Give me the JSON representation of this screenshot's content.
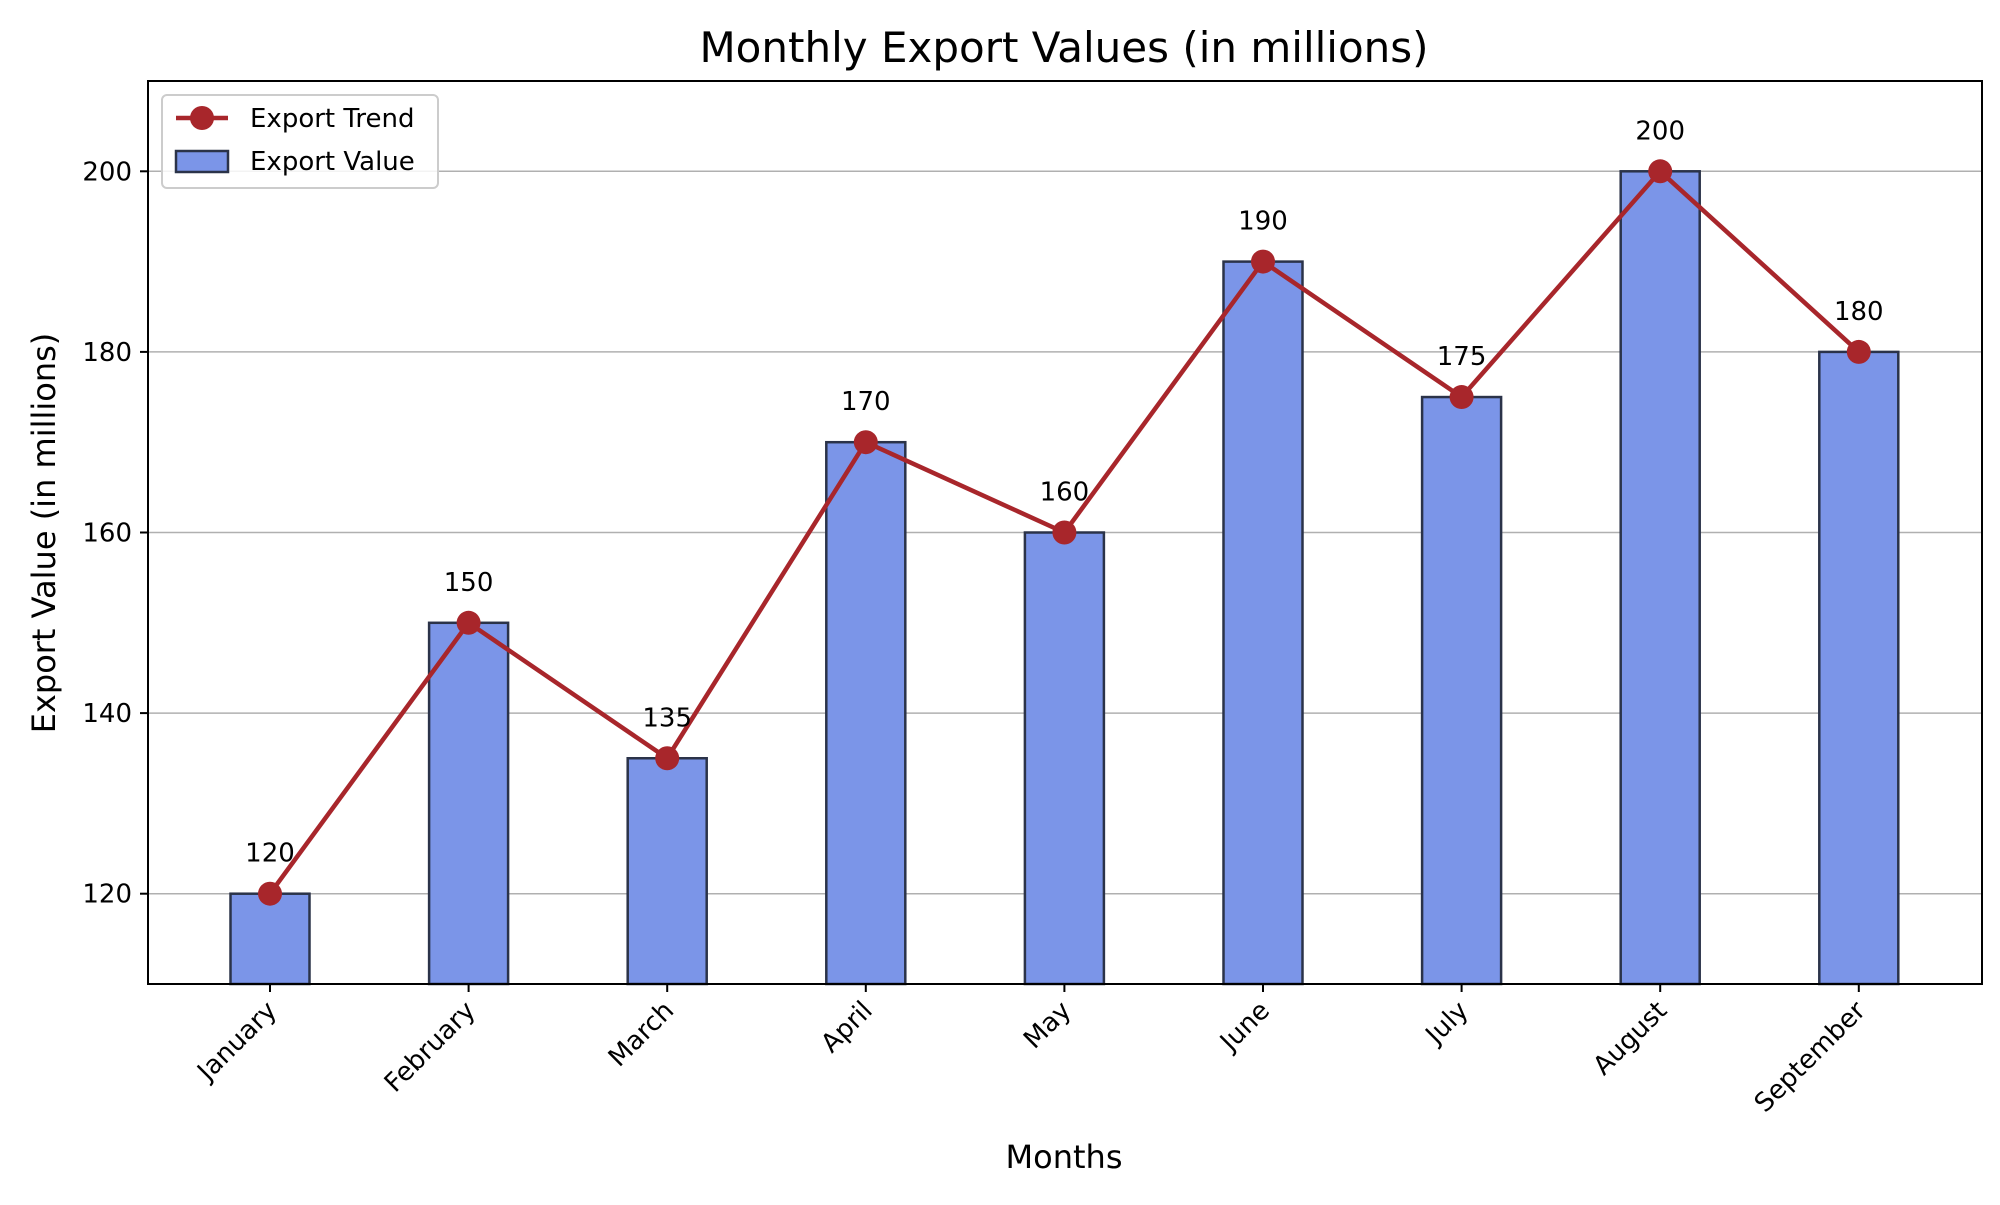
{
  "chart_data": {
    "type": "bar",
    "title": "Monthly Export Values (in millions)",
    "xlabel": "Months",
    "ylabel": "Export Value (in millions)",
    "categories": [
      "January",
      "February",
      "March",
      "April",
      "May",
      "June",
      "July",
      "August",
      "September"
    ],
    "series": [
      {
        "name": "Export Value",
        "type": "bar",
        "values": [
          120,
          150,
          135,
          170,
          160,
          190,
          175,
          200,
          180
        ]
      },
      {
        "name": "Export Trend",
        "type": "line",
        "values": [
          120,
          150,
          135,
          170,
          160,
          190,
          175,
          200,
          180
        ]
      }
    ],
    "data_labels": [
      "120",
      "150",
      "135",
      "170",
      "160",
      "190",
      "175",
      "200",
      "180"
    ],
    "ylim": [
      110,
      210
    ],
    "yticks": [
      120,
      140,
      160,
      180,
      200
    ],
    "ytick_labels": [
      "120",
      "140",
      "160",
      "180",
      "200"
    ],
    "grid": "y",
    "legend_position": "top-left",
    "colors": {
      "bar_fill": "#7b95e8",
      "bar_edge": "#2b3349",
      "line": "#a8262b",
      "grid": "#b0b0b0",
      "axes": "#000000"
    }
  }
}
